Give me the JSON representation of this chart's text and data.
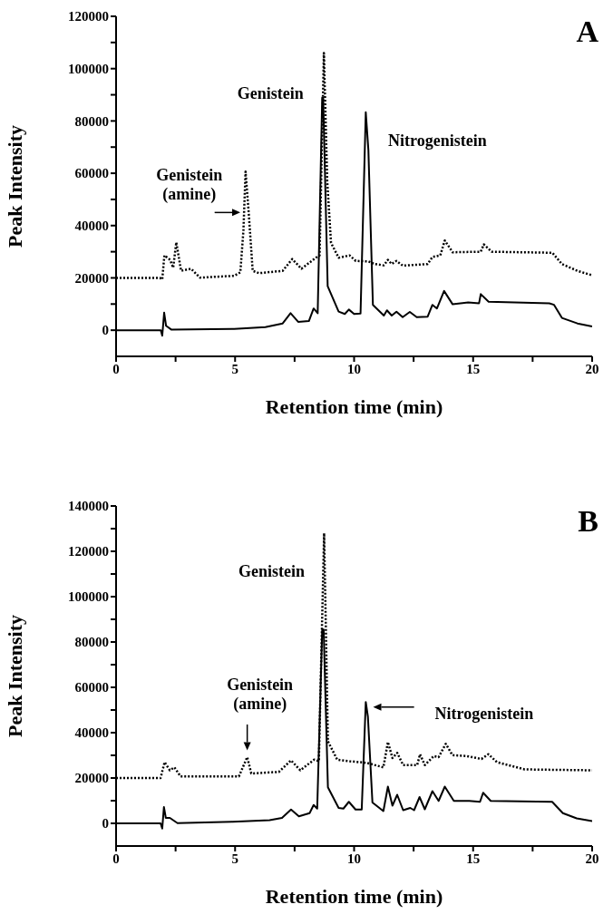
{
  "chart_data": [
    {
      "type": "line",
      "title": "A",
      "xlabel": "Retention time (min)",
      "ylabel": "Peak Intensity",
      "xlim": [
        0,
        20
      ],
      "ylim": [
        -10000,
        120000
      ],
      "xticks": [
        0,
        {
          "value": 2.5,
          "label": null
        },
        5,
        {
          "value": 7.5,
          "label": null
        },
        10,
        {
          "value": 12.5,
          "label": null
        },
        15,
        {
          "value": 17.5,
          "label": null
        },
        20
      ],
      "yticks": [
        0,
        {
          "value": 10000,
          "label": null
        },
        20000,
        {
          "value": 30000,
          "label": null
        },
        40000,
        {
          "value": 50000,
          "label": null
        },
        60000,
        {
          "value": 70000,
          "label": null
        },
        80000,
        {
          "value": 90000,
          "label": null
        },
        100000,
        {
          "value": 110000,
          "label": null
        },
        120000
      ],
      "annotations": [
        {
          "text": "Genistein",
          "x": 8.7,
          "y": 89000
        },
        {
          "text": "Nitrogenistein",
          "x": 10.49,
          "y": 83300
        },
        {
          "text": "Genistein (amine)",
          "x": 5.44,
          "y": 60600
        }
      ],
      "series": [
        {
          "color": "#000000",
          "line_style": "solid",
          "x": [
            0,
            1.88,
            1.94,
            2.02,
            2.1,
            2.33,
            4.96,
            6.27,
            7.0,
            7.33,
            7.65,
            8.1,
            8.3,
            8.47,
            8.66,
            8.7,
            8.89,
            9.35,
            9.61,
            9.78,
            10.0,
            10.27,
            10.49,
            10.6,
            10.79,
            11.25,
            11.38,
            11.58,
            11.78,
            12.04,
            12.34,
            12.63,
            13.09,
            13.29,
            13.48,
            13.78,
            14.14,
            14.79,
            15.25,
            15.32,
            15.65,
            18.2,
            18.4,
            18.73,
            19.38,
            20
          ],
          "values": [
            0,
            0,
            -2100,
            6700,
            1700,
            200,
            500,
            1200,
            2600,
            6500,
            3200,
            3500,
            8300,
            6500,
            89000,
            89000,
            16800,
            7100,
            6200,
            7900,
            6200,
            6400,
            83300,
            68900,
            9700,
            5600,
            7600,
            5600,
            7100,
            5000,
            7000,
            5000,
            5200,
            9700,
            8300,
            15000,
            9900,
            10600,
            10300,
            13800,
            10900,
            10300,
            9700,
            4700,
            2600,
            1400
          ]
        },
        {
          "color": "#000000",
          "line_style": "dotted",
          "x": [
            0,
            1.84,
            1.94,
            2.03,
            2.27,
            2.4,
            2.53,
            2.73,
            3.15,
            3.52,
            4.96,
            5.22,
            5.35,
            5.44,
            5.57,
            5.74,
            6.0,
            7.0,
            7.4,
            7.79,
            8.39,
            8.55,
            8.73,
            8.87,
            9.03,
            9.35,
            9.81,
            10.07,
            10.6,
            10.86,
            11.25,
            11.42,
            11.58,
            11.78,
            12.04,
            13.09,
            13.29,
            13.62,
            13.81,
            14.14,
            15.32,
            15.45,
            15.78,
            18.33,
            18.73,
            19.38,
            20
          ],
          "values": [
            20000,
            20000,
            19400,
            28600,
            26900,
            23900,
            33600,
            22700,
            23500,
            20100,
            20800,
            22100,
            38100,
            60600,
            45200,
            22700,
            21800,
            22700,
            27200,
            23500,
            27700,
            28600,
            106000,
            57000,
            33400,
            27700,
            28600,
            26500,
            26300,
            25300,
            24800,
            26900,
            25300,
            26500,
            24700,
            25300,
            28000,
            28600,
            34300,
            29800,
            30000,
            32800,
            30000,
            29600,
            25300,
            22700,
            21000
          ]
        }
      ]
    },
    {
      "type": "line",
      "title": "B",
      "xlabel": "Retention time (min)",
      "ylabel": "Peak Intensity",
      "xlim": [
        0,
        20
      ],
      "ylim": [
        -10000,
        140000
      ],
      "xticks": [
        0,
        {
          "value": 2.5,
          "label": null
        },
        5,
        {
          "value": 7.5,
          "label": null
        },
        10,
        {
          "value": 12.5,
          "label": null
        },
        15,
        {
          "value": 17.5,
          "label": null
        },
        20
      ],
      "yticks": [
        0,
        {
          "value": 10000,
          "label": null
        },
        20000,
        {
          "value": 30000,
          "label": null
        },
        40000,
        {
          "value": 50000,
          "label": null
        },
        60000,
        {
          "value": 70000,
          "label": null
        },
        80000,
        {
          "value": 90000,
          "label": null
        },
        100000,
        {
          "value": 110000,
          "label": null
        },
        120000,
        {
          "value": 130000,
          "label": null
        },
        140000
      ],
      "annotations": [
        {
          "text": "Genistein",
          "x": 8.74,
          "y": 128000
        },
        {
          "text": "Genistein (amine)",
          "x": 5.51,
          "y": 29200
        },
        "Nitrogenistein"
      ],
      "series": [
        {
          "color": "#000000",
          "line_style": "solid",
          "x": [
            0,
            1.87,
            1.94,
            2.01,
            2.09,
            2.26,
            2.58,
            4.9,
            6.45,
            6.97,
            7.35,
            7.68,
            8.13,
            8.3,
            8.45,
            8.66,
            8.72,
            8.9,
            9.35,
            9.55,
            9.78,
            10.06,
            10.32,
            10.49,
            10.58,
            10.77,
            11.23,
            11.42,
            11.61,
            11.81,
            12.06,
            12.36,
            12.52,
            12.75,
            12.97,
            13.29,
            13.55,
            13.81,
            14.19,
            14.84,
            15.29,
            15.42,
            15.74,
            18.32,
            18.77,
            19.35,
            20
          ],
          "values": [
            0,
            0,
            -2300,
            7200,
            2400,
            2400,
            100,
            700,
            1400,
            2400,
            6100,
            3100,
            4500,
            8100,
            6500,
            85500,
            85500,
            15900,
            6800,
            6500,
            9500,
            6100,
            6100,
            53500,
            47000,
            9200,
            5400,
            16200,
            7800,
            12600,
            5800,
            6800,
            5800,
            11600,
            6200,
            14200,
            9900,
            16200,
            9900,
            9900,
            9500,
            13500,
            9900,
            9500,
            4500,
            2200,
            1000
          ]
        },
        {
          "color": "#000000",
          "line_style": "dotted",
          "x": [
            0,
            1.87,
            2.04,
            2.26,
            2.45,
            2.71,
            5.16,
            5.51,
            5.68,
            6.84,
            7.35,
            7.74,
            8.32,
            8.52,
            8.74,
            8.9,
            9.29,
            9.81,
            10.52,
            11.23,
            11.42,
            11.61,
            11.81,
            12.06,
            12.65,
            12.77,
            12.97,
            13.35,
            13.55,
            13.85,
            14.13,
            14.71,
            15.35,
            15.64,
            16.0,
            17.16,
            20
          ],
          "values": [
            20000,
            20000,
            27000,
            23400,
            24700,
            20700,
            20700,
            29200,
            22000,
            22700,
            27800,
            23400,
            28100,
            27400,
            128000,
            36200,
            28100,
            27400,
            26700,
            24700,
            35900,
            28800,
            31100,
            25700,
            25700,
            30500,
            25700,
            29700,
            29200,
            35100,
            30100,
            29700,
            28400,
            30500,
            27000,
            23800,
            23400
          ]
        }
      ]
    }
  ]
}
